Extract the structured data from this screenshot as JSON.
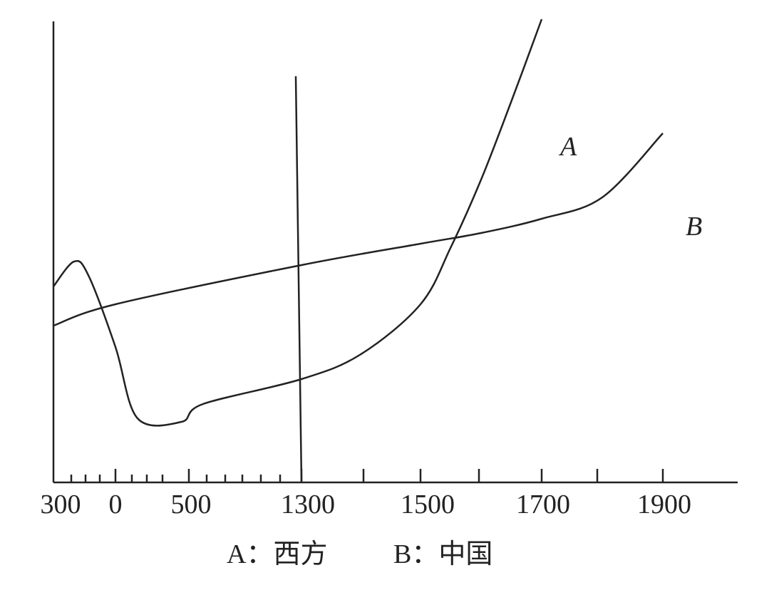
{
  "chart_data": {
    "type": "line",
    "title": "",
    "xlabel": "",
    "ylabel": "",
    "x_tick_labels": [
      "300",
      "0",
      "500",
      "1300",
      "1500",
      "1700",
      "1900"
    ],
    "series": [
      {
        "name": "A",
        "x": [
          -300,
          -200,
          -130,
          0,
          150,
          450,
          600,
          1300,
          1400,
          1500,
          1550,
          1600,
          1650,
          1700
        ],
        "y": [
          0.55,
          0.62,
          0.58,
          0.38,
          0.18,
          0.17,
          0.22,
          0.29,
          0.36,
          0.5,
          0.66,
          0.85,
          1.07,
          1.3
        ]
      },
      {
        "name": "B",
        "x": [
          -300,
          0,
          1300,
          1500,
          1600,
          1700,
          1800,
          1900
        ],
        "y": [
          0.44,
          0.5,
          0.61,
          0.67,
          0.7,
          0.74,
          0.8,
          0.98
        ]
      }
    ],
    "marker_line_x": 1300,
    "legend": [
      "A：西方",
      "B：中国"
    ],
    "grid": false
  }
}
